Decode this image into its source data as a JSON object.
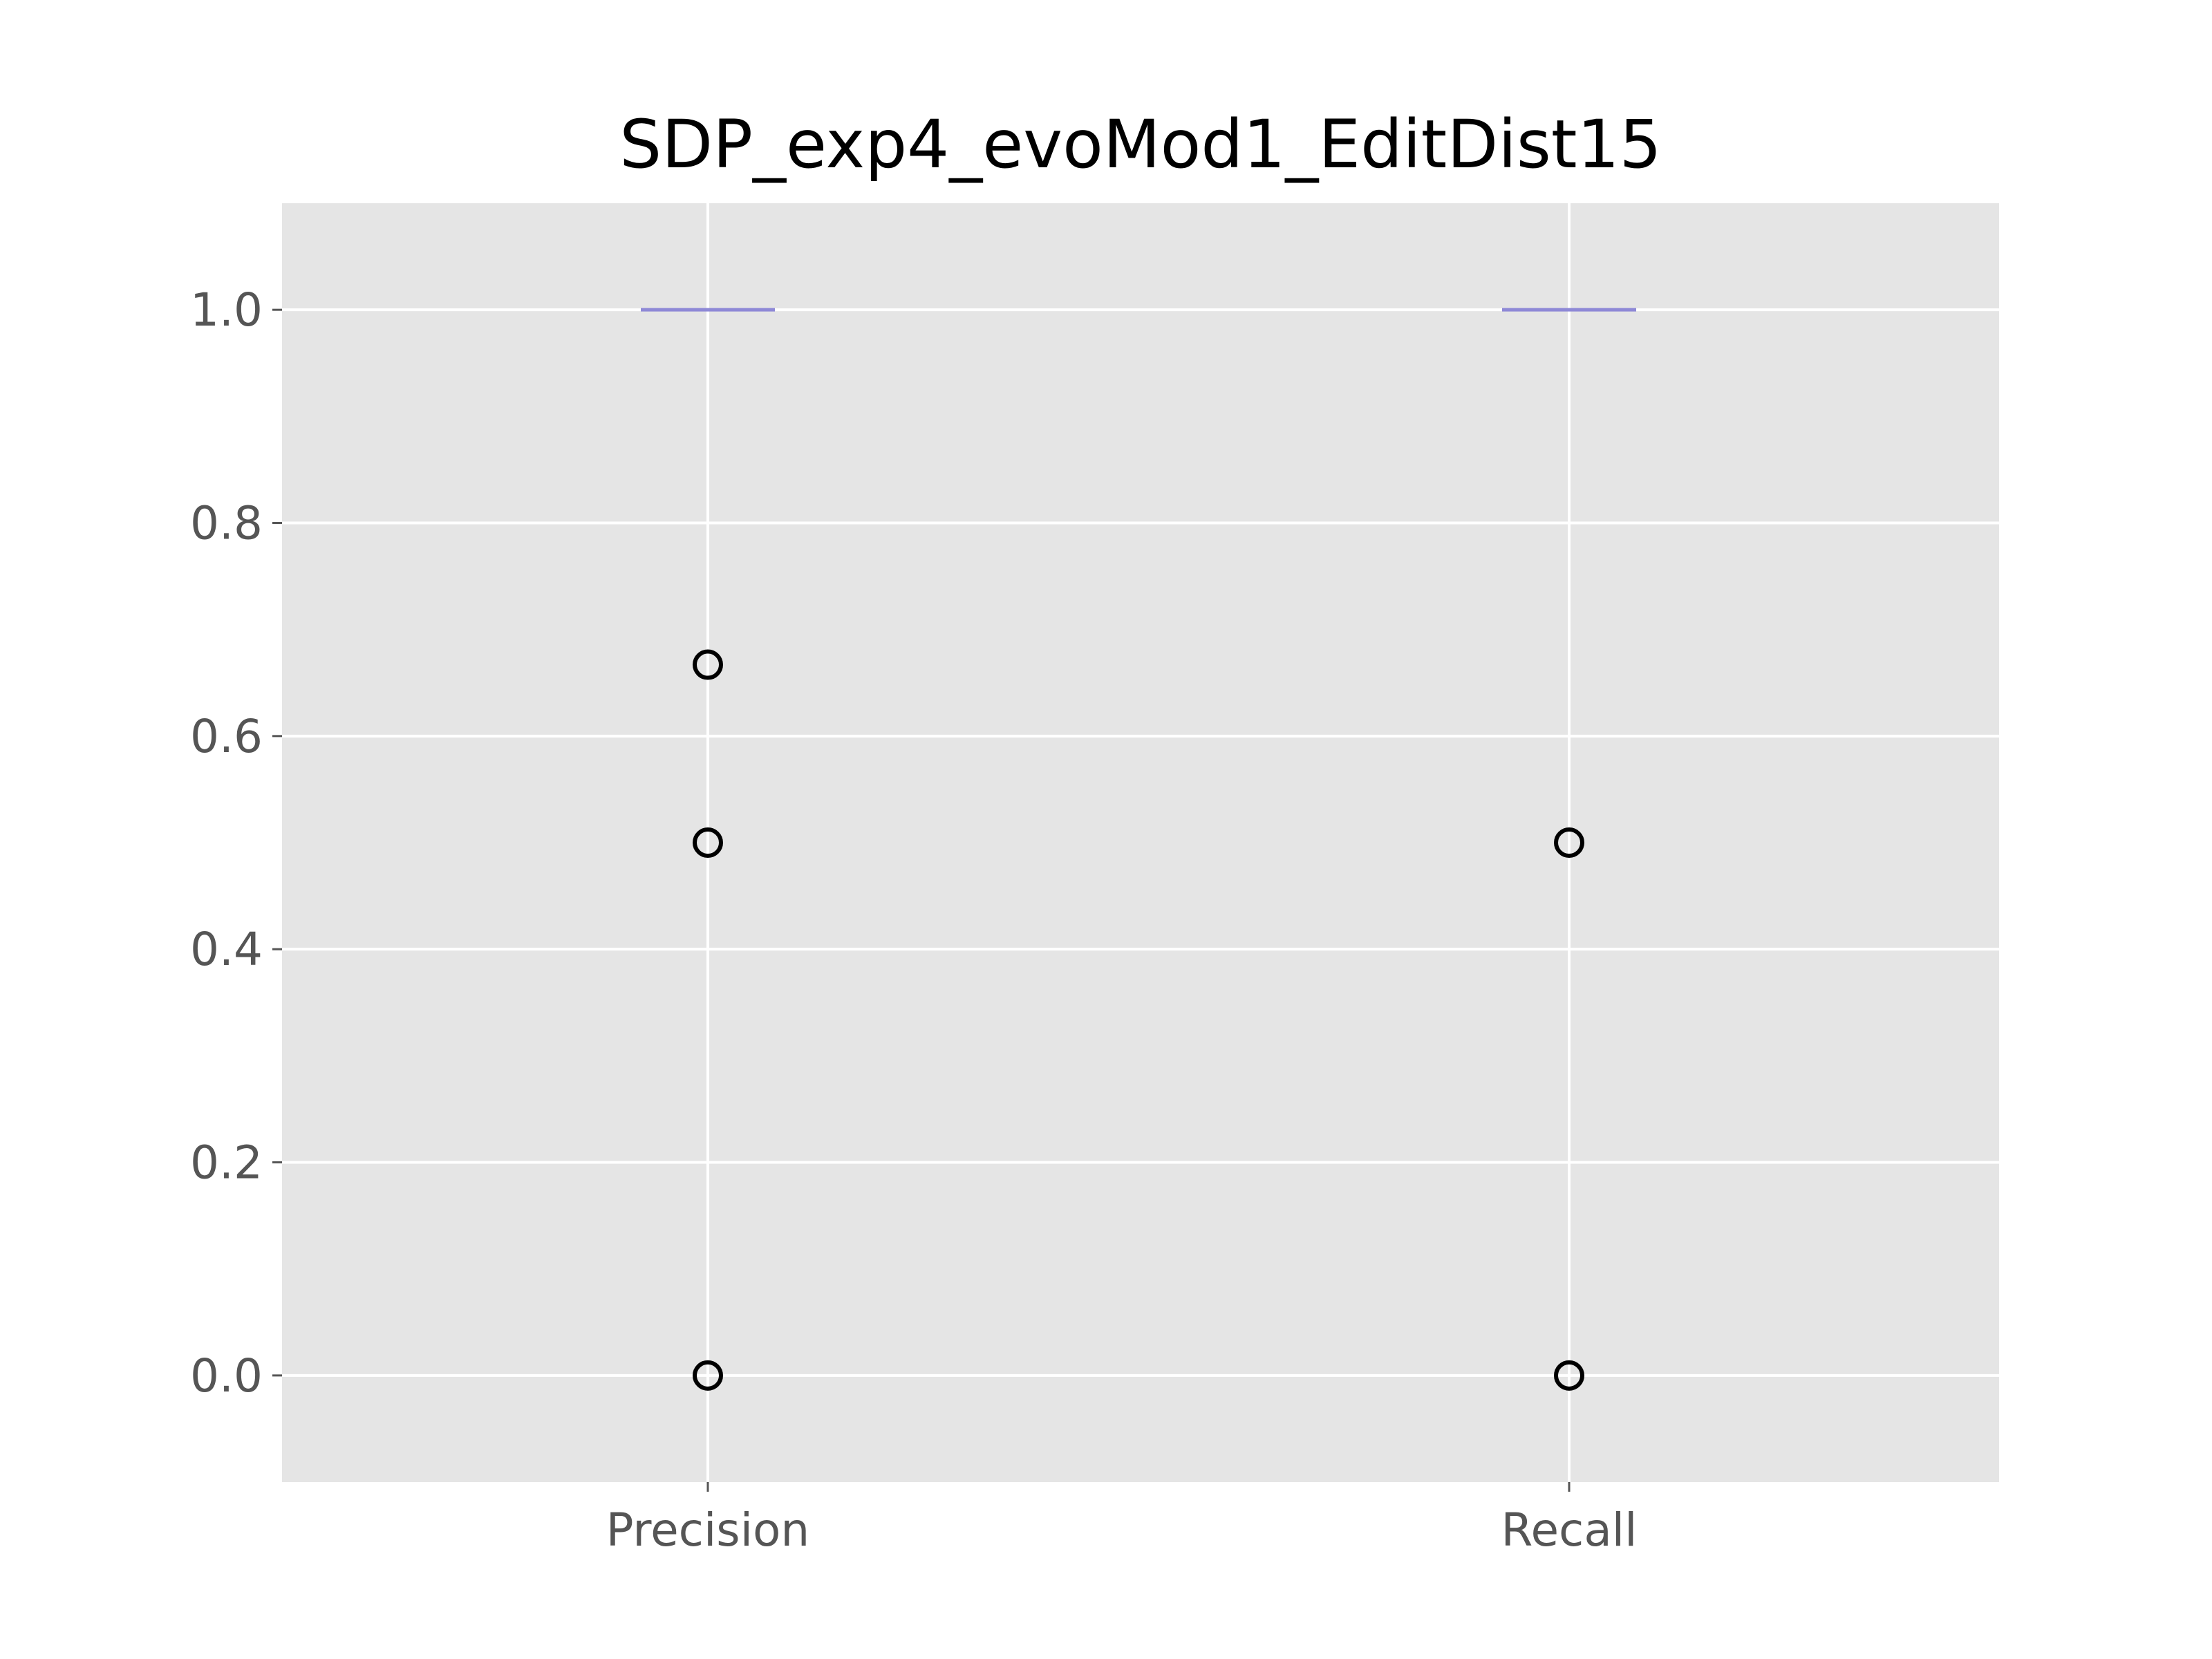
{
  "chart_data": {
    "type": "boxplot",
    "title": "SDP_exp4_evoMod1_EditDist15",
    "xlabel": "",
    "ylabel": "",
    "categories": [
      "Precision",
      "Recall"
    ],
    "ylim": [
      -0.1,
      1.1
    ],
    "yticks": [
      0.0,
      0.2,
      0.4,
      0.6,
      0.8,
      1.0
    ],
    "ytick_labels": [
      "0.0",
      "0.2",
      "0.4",
      "0.6",
      "0.8",
      "1.0"
    ],
    "grid": true,
    "legend": "none",
    "boxes": [
      {
        "category": "Precision",
        "q1": 1.0,
        "median": 1.0,
        "q3": 1.0,
        "whisker_low": 1.0,
        "whisker_high": 1.0,
        "fliers": [
          0.667,
          0.5,
          0.0
        ]
      },
      {
        "category": "Recall",
        "q1": 1.0,
        "median": 1.0,
        "q3": 1.0,
        "whisker_low": 1.0,
        "whisker_high": 1.0,
        "fliers": [
          0.5,
          0.0
        ]
      }
    ],
    "colors": {
      "plot_background": "#e5e5e5",
      "grid": "#ffffff",
      "median": "#8e89d6",
      "flier_edge": "#000000",
      "tick_label": "#555555"
    }
  }
}
